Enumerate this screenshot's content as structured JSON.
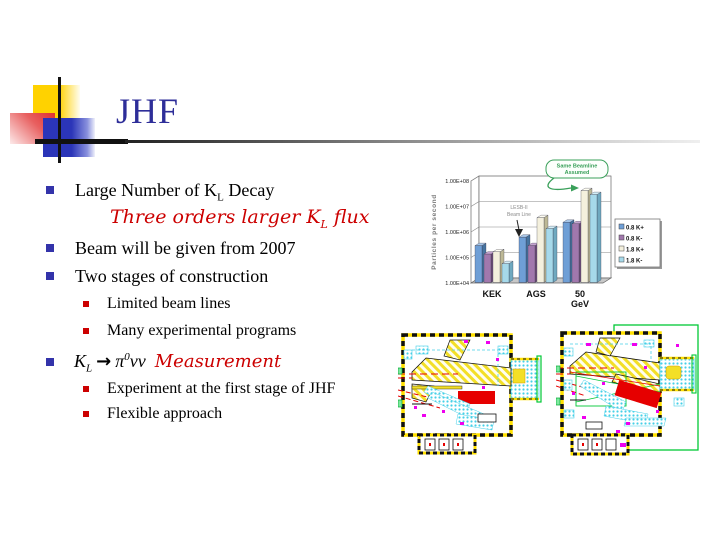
{
  "slide": {
    "title": "JHF",
    "title_color": "#2e2e99",
    "accent_red": "#cc0000",
    "bullet_blue": "#3333aa",
    "bullet_red": "#cc0000"
  },
  "content": {
    "bullet1": {
      "pre": "Large Number of K",
      "sub": "L",
      "post": " Decay"
    },
    "red_note": {
      "pre": "Three orders larger K",
      "sub": "L",
      "post": " flux"
    },
    "bullet2": "Beam will be given from 2007",
    "bullet3": "Two stages of construction",
    "sub1": "Limited beam lines",
    "sub2": "Many experimental programs",
    "bullet4": {
      "k": "K",
      "ksub": "L",
      "arrow": "→",
      "pi": "π",
      "pisup": "0",
      "nunu": "νν",
      "measurement": "Measurement"
    },
    "sub3": "Experiment at the first stage of JHF",
    "sub4": "Flexible approach"
  },
  "chart_data": {
    "type": "bar",
    "title": "",
    "xlabel": "",
    "ylabel": "Particles per second",
    "log_scale": true,
    "ylim": [
      10000,
      100000000
    ],
    "yticks": [
      "1.00E+08",
      "1.00E+07",
      "1.00E+06",
      "1.00E+05",
      "1.00E+04"
    ],
    "categories": [
      "KEK",
      "AGS",
      "50 GeV"
    ],
    "series": [
      {
        "name": "0.8 K+",
        "color": "#6f9fd6",
        "dark": "#46739f",
        "light": "#a9c7e8",
        "values": [
          280000.0,
          600000.0,
          2300000.0
        ]
      },
      {
        "name": "0.8 K-",
        "color": "#a178ad",
        "dark": "#6f4f7a",
        "light": "#c5a3cf",
        "values": [
          130000.0,
          280000.0,
          2000000.0
        ]
      },
      {
        "name": "1.8 K+",
        "color": "#f4f0dd",
        "dark": "#bdb896",
        "light": "#fffef2",
        "values": [
          160000.0,
          3500000.0,
          40000000.0
        ]
      },
      {
        "name": "1.8 K-",
        "color": "#a6d9ea",
        "dark": "#6fa9c0",
        "light": "#d3eef7",
        "values": [
          55000.0,
          1300000.0,
          28000000.0
        ]
      }
    ],
    "legend_position": "right",
    "grid": true,
    "annotations": [
      {
        "text": "Same Beamline Assumed",
        "color": "#3aa05a"
      },
      {
        "text": "LESB-II Beam Line",
        "color": "#8a8a8a"
      }
    ]
  },
  "diagram_palette": {
    "wall_yellow": "#ffe000",
    "hatch_yellow": "#f3df27",
    "cyan": "#45d0e8",
    "magnet_red": "#e60000",
    "green": "#00c835",
    "magenta": "#ee00ee"
  }
}
